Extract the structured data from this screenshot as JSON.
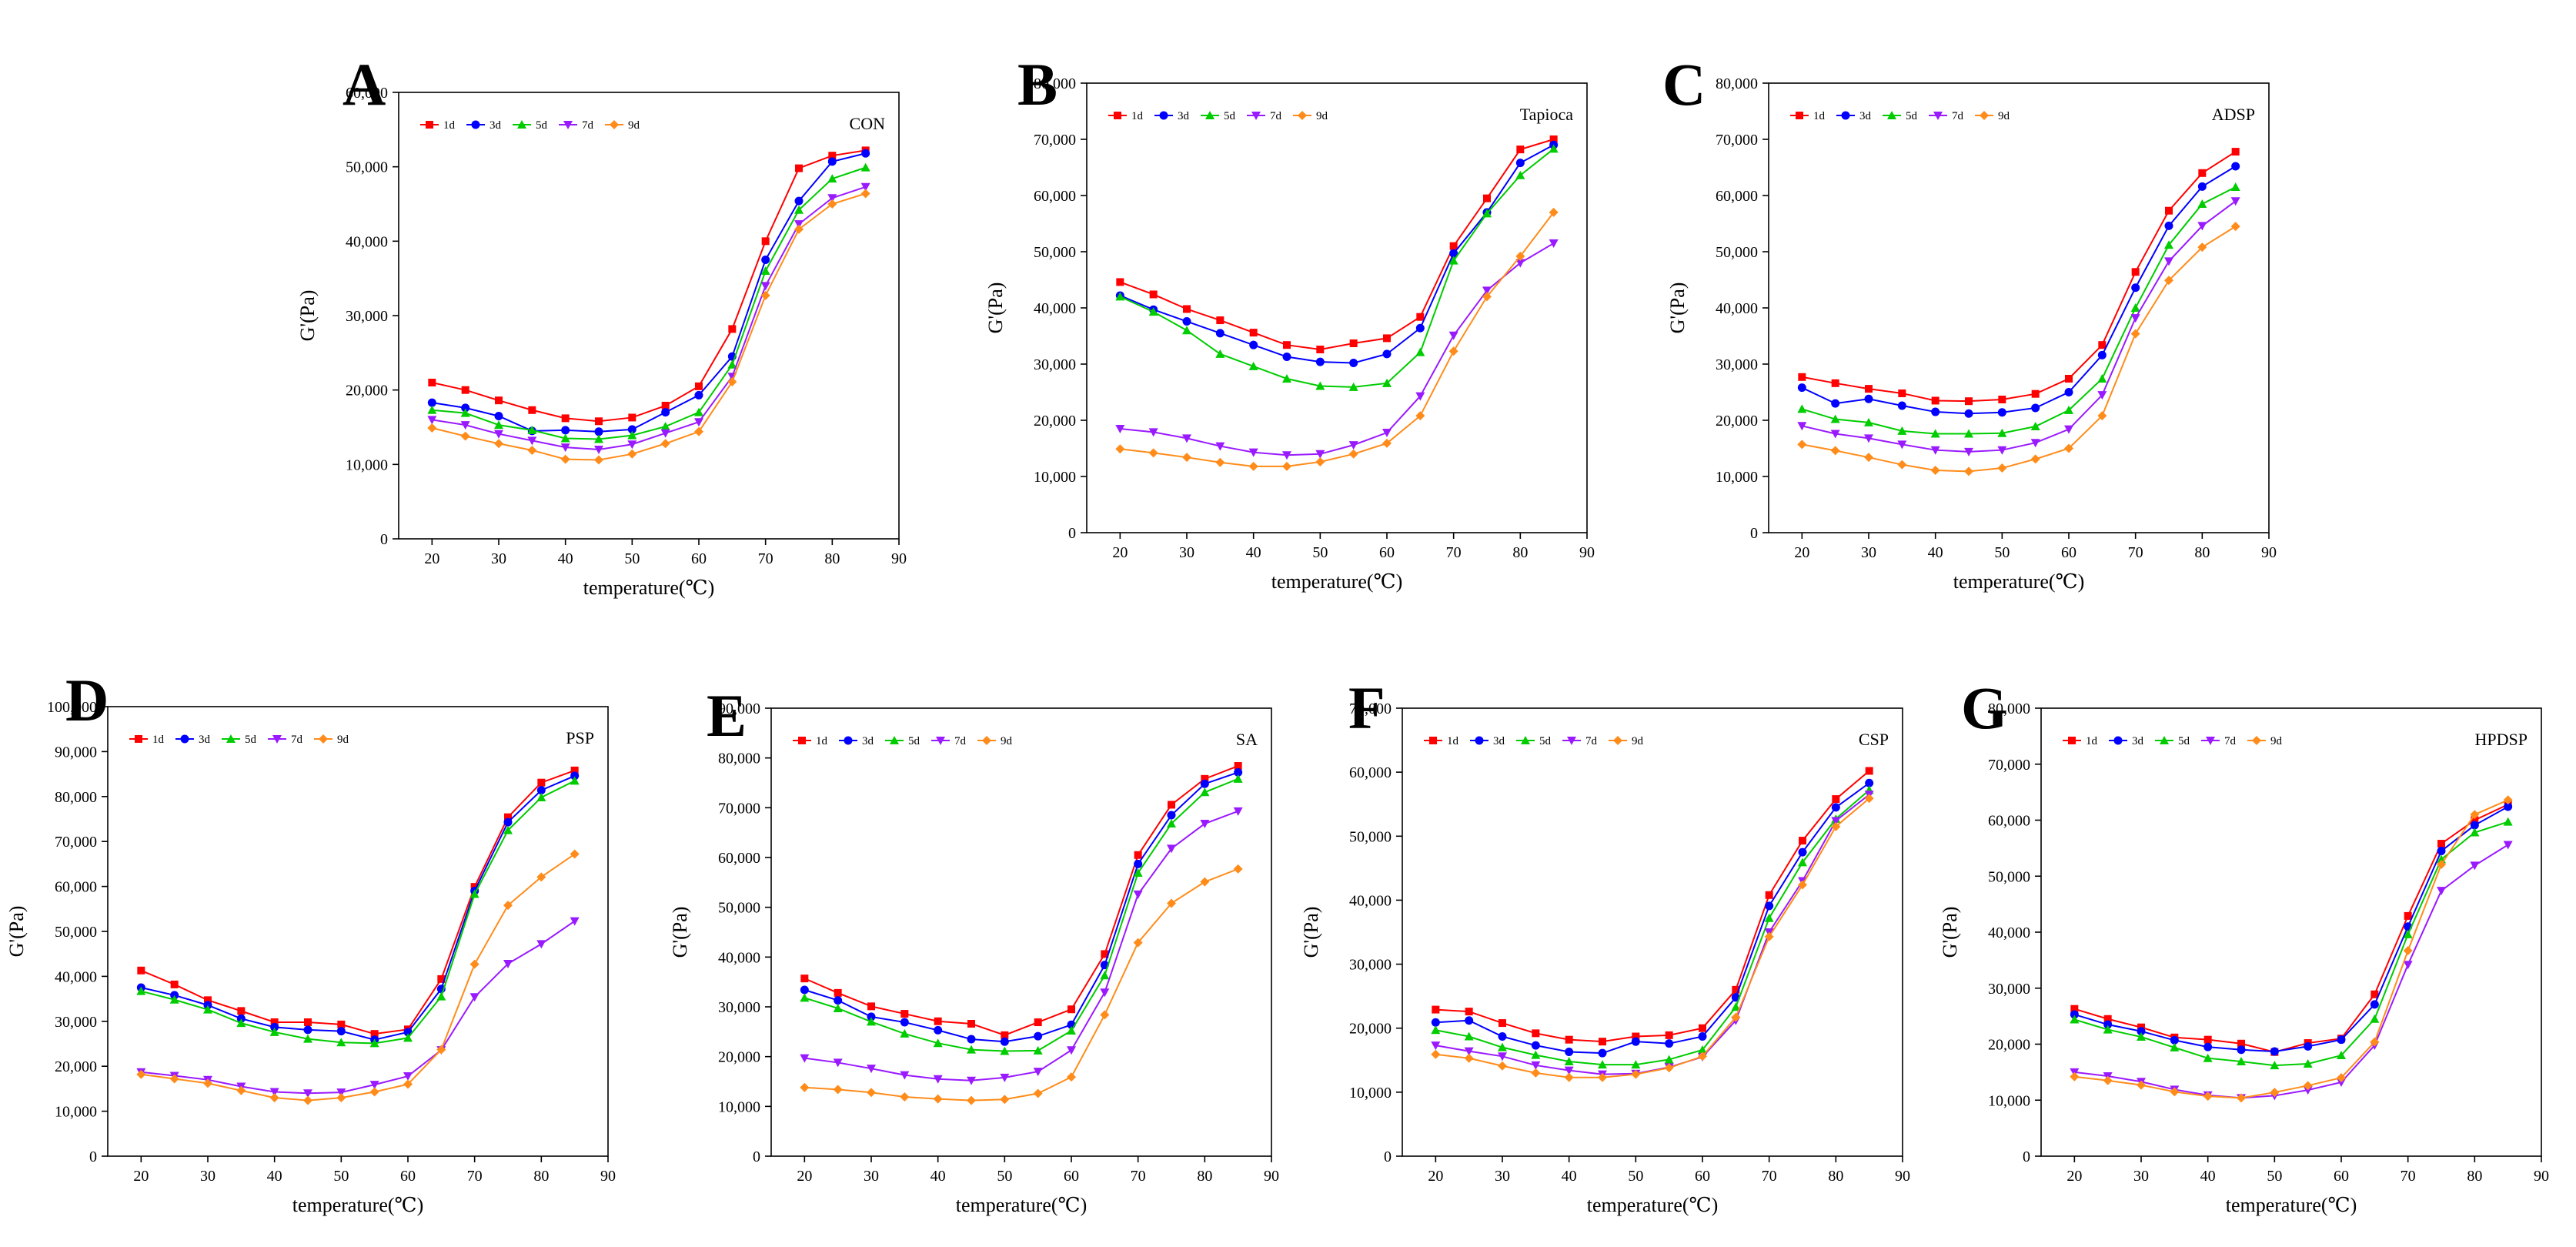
{
  "figure": {
    "series_names": [
      "1d",
      "3d",
      "5d",
      "7d",
      "9d"
    ],
    "series_colors": [
      "#ff0000",
      "#0000ff",
      "#00cc00",
      "#9a1aff",
      "#ff8c1a"
    ],
    "series_markers": [
      "square",
      "circle",
      "triangle-up",
      "triangle-down",
      "diamond"
    ]
  },
  "chart_data": [
    {
      "panel": "A",
      "sample": "CON",
      "type": "line",
      "xlabel": "temperature(℃)",
      "ylabel": "G'(Pa)",
      "xlim": [
        15,
        90
      ],
      "xticks": [
        20,
        30,
        40,
        50,
        60,
        70,
        80,
        90
      ],
      "ylim": [
        0,
        60000
      ],
      "yticks": [
        0,
        10000,
        20000,
        30000,
        40000,
        50000,
        60000
      ],
      "yticklabels": [
        "0",
        "10,000",
        "20,000",
        "30,000",
        "40,000",
        "50,000",
        "60,000"
      ],
      "x": [
        20,
        25,
        30,
        35,
        40,
        45,
        50,
        55,
        60,
        65,
        70,
        75,
        80,
        85
      ],
      "series": [
        {
          "name": "1d",
          "values": [
            21000,
            20000,
            18600,
            17300,
            16200,
            15800,
            16300,
            17900,
            20500,
            28200,
            40000,
            49800,
            51500,
            52200
          ]
        },
        {
          "name": "3d",
          "values": [
            18300,
            17600,
            16500,
            14500,
            14600,
            14400,
            14700,
            17000,
            19300,
            24500,
            37500,
            45400,
            50700,
            51800
          ]
        },
        {
          "name": "5d",
          "values": [
            17300,
            16900,
            15300,
            14600,
            13500,
            13400,
            13900,
            15100,
            17000,
            23400,
            36000,
            44200,
            48400,
            49900
          ]
        },
        {
          "name": "7d",
          "values": [
            16000,
            15300,
            14100,
            13200,
            12300,
            12000,
            12700,
            14200,
            15700,
            21800,
            34000,
            42300,
            45800,
            47300
          ]
        },
        {
          "name": "9d",
          "values": [
            14900,
            13800,
            12800,
            11900,
            10700,
            10600,
            11400,
            12800,
            14400,
            21100,
            32700,
            41600,
            45000,
            46400
          ]
        }
      ]
    },
    {
      "panel": "B",
      "sample": "Tapioca",
      "type": "line",
      "xlabel": "temperature(℃)",
      "ylabel": "G'(Pa)",
      "xlim": [
        15,
        90
      ],
      "xticks": [
        20,
        30,
        40,
        50,
        60,
        70,
        80,
        90
      ],
      "ylim": [
        0,
        80000
      ],
      "yticks": [
        0,
        10000,
        20000,
        30000,
        40000,
        50000,
        60000,
        70000,
        80000
      ],
      "yticklabels": [
        "0",
        "10,000",
        "20,000",
        "30,000",
        "40,000",
        "50,000",
        "60,000",
        "70,000",
        "80,000"
      ],
      "x": [
        20,
        25,
        30,
        35,
        40,
        45,
        50,
        55,
        60,
        65,
        70,
        75,
        80,
        85
      ],
      "series": [
        {
          "name": "1d",
          "values": [
            44600,
            42400,
            39800,
            37800,
            35600,
            33400,
            32600,
            33700,
            34600,
            38400,
            51000,
            59500,
            68200,
            70000
          ]
        },
        {
          "name": "3d",
          "values": [
            42200,
            39700,
            37600,
            35500,
            33400,
            31300,
            30400,
            30200,
            31800,
            36400,
            49700,
            57000,
            65800,
            69000
          ]
        },
        {
          "name": "5d",
          "values": [
            42000,
            39300,
            36000,
            31800,
            29600,
            27400,
            26100,
            25900,
            26600,
            32100,
            48400,
            56800,
            63600,
            68300
          ]
        },
        {
          "name": "7d",
          "values": [
            18500,
            17900,
            16800,
            15400,
            14300,
            13800,
            14000,
            15600,
            17800,
            24300,
            35100,
            43100,
            48000,
            51500
          ]
        },
        {
          "name": "9d",
          "values": [
            14900,
            14200,
            13400,
            12500,
            11800,
            11800,
            12600,
            14000,
            15900,
            20800,
            32300,
            42000,
            49200,
            57000
          ]
        }
      ]
    },
    {
      "panel": "C",
      "sample": "ADSP",
      "type": "line",
      "xlabel": "temperature(℃)",
      "ylabel": "G'(Pa)",
      "xlim": [
        15,
        90
      ],
      "xticks": [
        20,
        30,
        40,
        50,
        60,
        70,
        80,
        90
      ],
      "ylim": [
        0,
        80000
      ],
      "yticks": [
        0,
        10000,
        20000,
        30000,
        40000,
        50000,
        60000,
        70000,
        80000
      ],
      "yticklabels": [
        "0",
        "10,000",
        "20,000",
        "30,000",
        "40,000",
        "50,000",
        "60,000",
        "70,000",
        "80,000"
      ],
      "x": [
        20,
        25,
        30,
        35,
        40,
        45,
        50,
        55,
        60,
        65,
        70,
        75,
        80,
        85
      ],
      "series": [
        {
          "name": "1d",
          "values": [
            27700,
            26600,
            25600,
            24800,
            23500,
            23400,
            23700,
            24700,
            27400,
            33400,
            46400,
            57300,
            64000,
            67800
          ]
        },
        {
          "name": "3d",
          "values": [
            25800,
            23000,
            23800,
            22600,
            21500,
            21200,
            21400,
            22200,
            25000,
            31600,
            43600,
            54600,
            61600,
            65200
          ]
        },
        {
          "name": "5d",
          "values": [
            22000,
            20200,
            19600,
            18100,
            17600,
            17600,
            17700,
            18900,
            21800,
            27400,
            40000,
            51200,
            58500,
            61500
          ]
        },
        {
          "name": "7d",
          "values": [
            19000,
            17600,
            16800,
            15700,
            14700,
            14400,
            14700,
            16000,
            18400,
            24500,
            38200,
            48300,
            54600,
            59000
          ]
        },
        {
          "name": "9d",
          "values": [
            15700,
            14600,
            13400,
            12100,
            11100,
            10900,
            11500,
            13100,
            15000,
            20800,
            35400,
            44900,
            50800,
            54500
          ]
        }
      ]
    },
    {
      "panel": "D",
      "sample": "PSP",
      "type": "line",
      "xlabel": "temperature(℃)",
      "ylabel": "G'(Pa)",
      "xlim": [
        15,
        90
      ],
      "xticks": [
        20,
        30,
        40,
        50,
        60,
        70,
        80,
        90
      ],
      "ylim": [
        0,
        100000
      ],
      "yticks": [
        0,
        10000,
        20000,
        30000,
        40000,
        50000,
        60000,
        70000,
        80000,
        90000,
        100000
      ],
      "yticklabels": [
        "0",
        "10,000",
        "20,000",
        "30,000",
        "40,000",
        "50,000",
        "60,000",
        "70,000",
        "80,000",
        "90,000",
        "100,000"
      ],
      "x": [
        20,
        25,
        30,
        35,
        40,
        45,
        50,
        55,
        60,
        65,
        70,
        75,
        80,
        85
      ],
      "series": [
        {
          "name": "1d",
          "values": [
            41300,
            38200,
            34700,
            32300,
            29800,
            29800,
            29300,
            27200,
            28200,
            39400,
            59900,
            75400,
            83100,
            85800
          ]
        },
        {
          "name": "3d",
          "values": [
            37500,
            35800,
            33600,
            30600,
            28700,
            28100,
            27800,
            25900,
            27600,
            37200,
            59000,
            74300,
            81400,
            84600
          ]
        },
        {
          "name": "5d",
          "values": [
            36700,
            34800,
            32600,
            29600,
            27600,
            26100,
            25300,
            25100,
            26300,
            35500,
            58300,
            72500,
            79800,
            83500
          ]
        },
        {
          "name": "7d",
          "values": [
            18700,
            17900,
            17000,
            15500,
            14300,
            14000,
            14200,
            15900,
            17800,
            23600,
            35400,
            42800,
            47200,
            52300
          ]
        },
        {
          "name": "9d",
          "values": [
            18200,
            17200,
            16200,
            14600,
            13000,
            12400,
            13000,
            14300,
            16000,
            23700,
            42700,
            55800,
            62100,
            67200
          ]
        }
      ]
    },
    {
      "panel": "E",
      "sample": "SA",
      "type": "line",
      "xlabel": "temperature(℃)",
      "ylabel": "G'(Pa)",
      "xlim": [
        15,
        90
      ],
      "xticks": [
        20,
        30,
        40,
        50,
        60,
        70,
        80,
        90
      ],
      "ylim": [
        0,
        90000
      ],
      "yticks": [
        0,
        10000,
        20000,
        30000,
        40000,
        50000,
        60000,
        70000,
        80000,
        90000
      ],
      "yticklabels": [
        "0",
        "10,000",
        "20,000",
        "30,000",
        "40,000",
        "50,000",
        "60,000",
        "70,000",
        "80,000",
        "90,000"
      ],
      "x": [
        20,
        25,
        30,
        35,
        40,
        45,
        50,
        55,
        60,
        65,
        70,
        75,
        80,
        85
      ],
      "series": [
        {
          "name": "1d",
          "values": [
            35700,
            32800,
            30100,
            28600,
            27100,
            26600,
            24300,
            26900,
            29500,
            40600,
            60500,
            70600,
            75800,
            78400
          ]
        },
        {
          "name": "3d",
          "values": [
            33400,
            31300,
            28000,
            26900,
            25300,
            23500,
            23000,
            24100,
            26400,
            38400,
            58700,
            68500,
            74800,
            77100
          ]
        },
        {
          "name": "5d",
          "values": [
            31800,
            29700,
            27000,
            24600,
            22700,
            21400,
            21100,
            21200,
            25200,
            36300,
            56900,
            66800,
            73100,
            75800
          ]
        },
        {
          "name": "7d",
          "values": [
            19700,
            18800,
            17600,
            16300,
            15500,
            15200,
            15800,
            17000,
            21300,
            32900,
            52600,
            61800,
            66800,
            69300
          ]
        },
        {
          "name": "9d",
          "values": [
            13800,
            13400,
            12800,
            11900,
            11500,
            11200,
            11400,
            12600,
            15900,
            28400,
            42900,
            50800,
            55100,
            57700
          ]
        }
      ]
    },
    {
      "panel": "F",
      "sample": "CSP",
      "type": "line",
      "xlabel": "temperature(℃)",
      "ylabel": "G'(Pa)",
      "xlim": [
        15,
        90
      ],
      "xticks": [
        20,
        30,
        40,
        50,
        60,
        70,
        80,
        90
      ],
      "ylim": [
        0,
        70000
      ],
      "yticks": [
        0,
        10000,
        20000,
        30000,
        40000,
        50000,
        60000,
        70000
      ],
      "yticklabels": [
        "0",
        "10,000",
        "20,000",
        "30,000",
        "40,000",
        "50,000",
        "60,000",
        "70,000"
      ],
      "x": [
        20,
        25,
        30,
        35,
        40,
        45,
        50,
        55,
        60,
        65,
        70,
        75,
        80,
        85
      ],
      "series": [
        {
          "name": "1d",
          "values": [
            22900,
            22600,
            20800,
            19200,
            18200,
            17900,
            18700,
            18900,
            20000,
            26000,
            40800,
            49300,
            55800,
            60200
          ]
        },
        {
          "name": "3d",
          "values": [
            20900,
            21200,
            18700,
            17300,
            16300,
            16100,
            17900,
            17600,
            18700,
            24800,
            39100,
            47500,
            54500,
            58300
          ]
        },
        {
          "name": "5d",
          "values": [
            19700,
            18700,
            17000,
            15800,
            14800,
            14300,
            14300,
            15100,
            16600,
            23300,
            37200,
            45900,
            52700,
            57200
          ]
        },
        {
          "name": "7d",
          "values": [
            17300,
            16400,
            15600,
            14200,
            13400,
            12800,
            12900,
            13900,
            15500,
            21200,
            35000,
            43000,
            52400,
            56500
          ]
        },
        {
          "name": "9d",
          "values": [
            15900,
            15300,
            14100,
            13000,
            12300,
            12300,
            12800,
            13800,
            15600,
            21700,
            34300,
            42400,
            51500,
            55900
          ]
        }
      ]
    },
    {
      "panel": "G",
      "sample": "HPDSP",
      "type": "line",
      "xlabel": "temperature(℃)",
      "ylabel": "G'(Pa)",
      "xlim": [
        15,
        90
      ],
      "xticks": [
        20,
        30,
        40,
        50,
        60,
        70,
        80,
        90
      ],
      "ylim": [
        0,
        80000
      ],
      "yticks": [
        0,
        10000,
        20000,
        30000,
        40000,
        50000,
        60000,
        70000,
        80000
      ],
      "yticklabels": [
        "0",
        "10,000",
        "20,000",
        "30,000",
        "40,000",
        "50,000",
        "60,000",
        "70,000",
        "80,000"
      ],
      "x": [
        20,
        25,
        30,
        35,
        40,
        45,
        50,
        55,
        60,
        65,
        70,
        75,
        80,
        85
      ],
      "series": [
        {
          "name": "1d",
          "values": [
            26300,
            24500,
            23000,
            21200,
            20800,
            20100,
            18600,
            20200,
            21000,
            28900,
            42900,
            55800,
            60000,
            62800
          ]
        },
        {
          "name": "3d",
          "values": [
            25300,
            23500,
            22300,
            20700,
            19500,
            19000,
            18700,
            19600,
            20800,
            27100,
            41000,
            54500,
            59100,
            62400
          ]
        },
        {
          "name": "5d",
          "values": [
            24400,
            22600,
            21300,
            19400,
            17500,
            16900,
            16200,
            16500,
            18000,
            24500,
            39600,
            53000,
            57800,
            59700
          ]
        },
        {
          "name": "7d",
          "values": [
            15000,
            14300,
            13300,
            11900,
            10900,
            10400,
            10800,
            11800,
            13200,
            19800,
            34200,
            47400,
            51900,
            55600
          ]
        },
        {
          "name": "9d",
          "values": [
            14200,
            13500,
            12700,
            11500,
            10700,
            10400,
            11400,
            12600,
            14000,
            20400,
            36700,
            52100,
            61000,
            63600
          ]
        }
      ]
    }
  ]
}
